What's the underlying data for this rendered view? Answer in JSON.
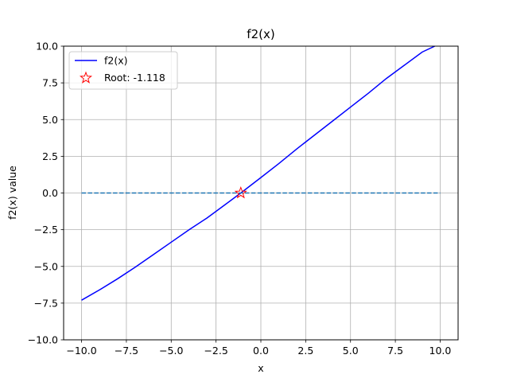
{
  "chart_data": {
    "type": "line",
    "title": "f2(x)",
    "xlabel": "x",
    "ylabel": "f2(x) value",
    "xlim": [
      -11,
      11
    ],
    "ylim": [
      -10,
      10
    ],
    "xticks": [
      -10.0,
      -7.5,
      -5.0,
      -2.5,
      0.0,
      2.5,
      5.0,
      7.5,
      10.0
    ],
    "xtick_labels": [
      "−10.0",
      "−7.5",
      "−5.0",
      "−2.5",
      "0.0",
      "2.5",
      "5.0",
      "7.5",
      "10.0"
    ],
    "yticks": [
      -10.0,
      -7.5,
      -5.0,
      -2.5,
      0.0,
      2.5,
      5.0,
      7.5,
      10.0
    ],
    "ytick_labels": [
      "−10.0",
      "−7.5",
      "−5.0",
      "−2.5",
      "0.0",
      "2.5",
      "5.0",
      "7.5",
      "10.0"
    ],
    "grid": true,
    "legend_position": "upper-left",
    "series": [
      {
        "name": "f2(x)",
        "color": "#0000ff",
        "style": "solid",
        "x": [
          -10,
          -9,
          -8,
          -7,
          -6,
          -5,
          -4,
          -3,
          -2,
          -1.118,
          0,
          1,
          2,
          3,
          4,
          5,
          6,
          7,
          8,
          9,
          9.7
        ],
        "y": [
          -7.3,
          -6.6,
          -5.85,
          -5.05,
          -4.2,
          -3.35,
          -2.5,
          -1.7,
          -0.8,
          0,
          1.05,
          2.0,
          3.0,
          3.95,
          4.9,
          5.85,
          6.8,
          7.8,
          8.7,
          9.6,
          10.0
        ]
      },
      {
        "name": "",
        "color": "#1f77b4",
        "style": "dashed",
        "x": [
          -10,
          10
        ],
        "y": [
          0,
          0
        ]
      }
    ],
    "markers": [
      {
        "name": "Root: -1.118",
        "x": -1.118,
        "y": 0,
        "marker": "star",
        "color": "#ff0000"
      }
    ]
  }
}
